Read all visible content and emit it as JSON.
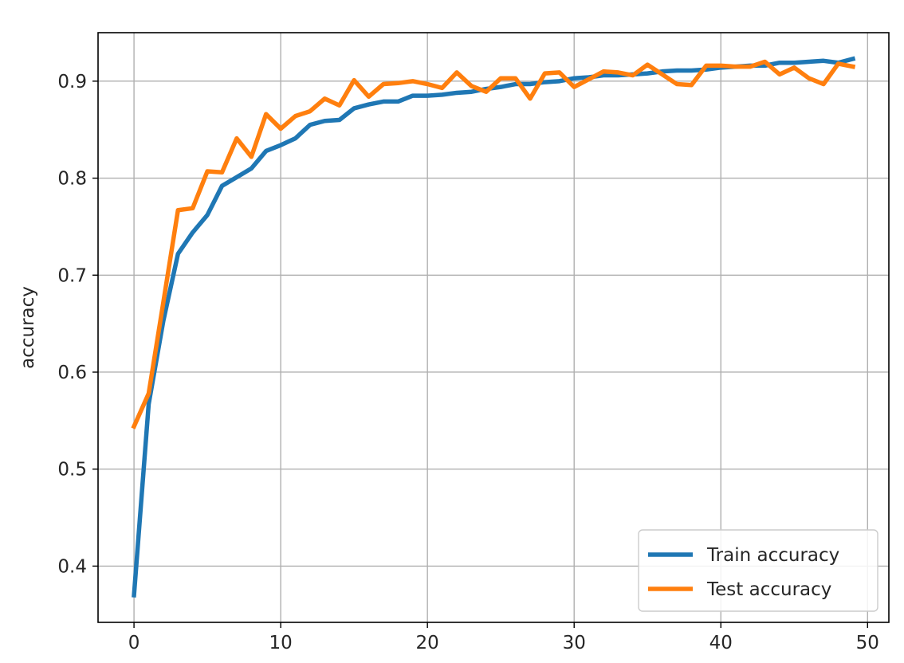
{
  "chart_data": {
    "type": "line",
    "title": "",
    "xlabel": "",
    "ylabel": "accuracy",
    "xlim": [
      -2.45,
      51.45
    ],
    "ylim": [
      0.342,
      0.95
    ],
    "xticks": [
      0,
      10,
      20,
      30,
      40,
      50
    ],
    "yticks": [
      0.4,
      0.5,
      0.6,
      0.7,
      0.8,
      0.9
    ],
    "xtick_labels": [
      "0",
      "10",
      "20",
      "30",
      "40",
      "50"
    ],
    "ytick_labels": [
      "0.4",
      "0.5",
      "0.6",
      "0.7",
      "0.8",
      "0.9"
    ],
    "grid": true,
    "legend_position": "lower right",
    "x": [
      0,
      1,
      2,
      3,
      4,
      5,
      6,
      7,
      8,
      9,
      10,
      11,
      12,
      13,
      14,
      15,
      16,
      17,
      18,
      19,
      20,
      21,
      22,
      23,
      24,
      25,
      26,
      27,
      28,
      29,
      30,
      31,
      32,
      33,
      34,
      35,
      36,
      37,
      38,
      39,
      40,
      41,
      42,
      43,
      44,
      45,
      46,
      47,
      48,
      49
    ],
    "series": [
      {
        "name": "Train accuracy",
        "color": "#1f77b4",
        "values": [
          0.37,
          0.567,
          0.653,
          0.722,
          0.744,
          0.762,
          0.792,
          0.801,
          0.81,
          0.828,
          0.834,
          0.841,
          0.855,
          0.859,
          0.86,
          0.872,
          0.876,
          0.879,
          0.879,
          0.885,
          0.885,
          0.886,
          0.888,
          0.889,
          0.892,
          0.894,
          0.897,
          0.897,
          0.899,
          0.9,
          0.903,
          0.904,
          0.906,
          0.906,
          0.907,
          0.908,
          0.91,
          0.911,
          0.911,
          0.912,
          0.914,
          0.915,
          0.916,
          0.916,
          0.919,
          0.919,
          0.92,
          0.921,
          0.919,
          0.923
        ]
      },
      {
        "name": "Test accuracy",
        "color": "#ff7f0e",
        "values": [
          0.544,
          0.578,
          0.672,
          0.767,
          0.769,
          0.807,
          0.806,
          0.841,
          0.822,
          0.866,
          0.851,
          0.864,
          0.869,
          0.882,
          0.875,
          0.901,
          0.884,
          0.897,
          0.898,
          0.9,
          0.897,
          0.893,
          0.909,
          0.895,
          0.889,
          0.903,
          0.903,
          0.882,
          0.908,
          0.909,
          0.894,
          0.902,
          0.91,
          0.909,
          0.906,
          0.917,
          0.907,
          0.897,
          0.896,
          0.916,
          0.916,
          0.915,
          0.915,
          0.92,
          0.907,
          0.914,
          0.903,
          0.897,
          0.918,
          0.915
        ]
      }
    ]
  }
}
